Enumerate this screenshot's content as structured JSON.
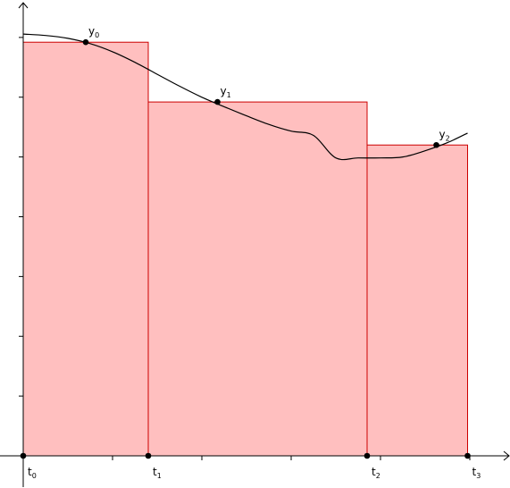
{
  "colors": {
    "rect_fill": "#ffbfbf",
    "rect_stroke": "#cc0000",
    "curve": "#000000",
    "axis": "#000000",
    "point": "#000000"
  },
  "chart_data": {
    "type": "area",
    "title": "",
    "xlabel": "",
    "ylabel": "",
    "xlim": [
      -0.05,
      1.09
    ],
    "ylim": [
      -0.03,
      1.0
    ],
    "grid": false,
    "legend": "none",
    "x_ticks": [
      0.2,
      0.4,
      0.6,
      0.8,
      1.0
    ],
    "y_ticks": [
      0.125,
      0.25,
      0.375,
      0.5,
      0.625,
      0.75,
      0.875
    ],
    "t_points": [
      {
        "name": "t",
        "sub": "0",
        "x": 0.0
      },
      {
        "name": "t",
        "sub": "1",
        "x": 0.28
      },
      {
        "name": "t",
        "sub": "2",
        "x": 0.77
      },
      {
        "name": "t",
        "sub": "3",
        "x": 0.995
      }
    ],
    "sample_points": [
      {
        "name": "y",
        "sub": "0",
        "x": 0.14,
        "y": 0.865
      },
      {
        "name": "y",
        "sub": "1",
        "x": 0.435,
        "y": 0.74
      },
      {
        "name": "y",
        "sub": "2",
        "x": 0.925,
        "y": 0.65
      }
    ],
    "rectangles": [
      {
        "x0": 0.0,
        "x1": 0.28,
        "height": 0.865
      },
      {
        "x0": 0.28,
        "x1": 0.77,
        "height": 0.74
      },
      {
        "x0": 0.77,
        "x1": 0.995,
        "height": 0.65
      }
    ],
    "curve": {
      "x": [
        0.0,
        0.05,
        0.1,
        0.15,
        0.2,
        0.25,
        0.3,
        0.35,
        0.4,
        0.45,
        0.5,
        0.55,
        0.6,
        0.65,
        0.7,
        0.75,
        0.8,
        0.85,
        0.9,
        0.95,
        0.995
      ],
      "y": [
        0.882,
        0.879,
        0.873,
        0.862,
        0.845,
        0.823,
        0.798,
        0.773,
        0.75,
        0.73,
        0.711,
        0.693,
        0.679,
        0.67,
        0.623,
        0.623,
        0.623,
        0.625,
        0.638,
        0.655,
        0.675
      ]
    }
  }
}
